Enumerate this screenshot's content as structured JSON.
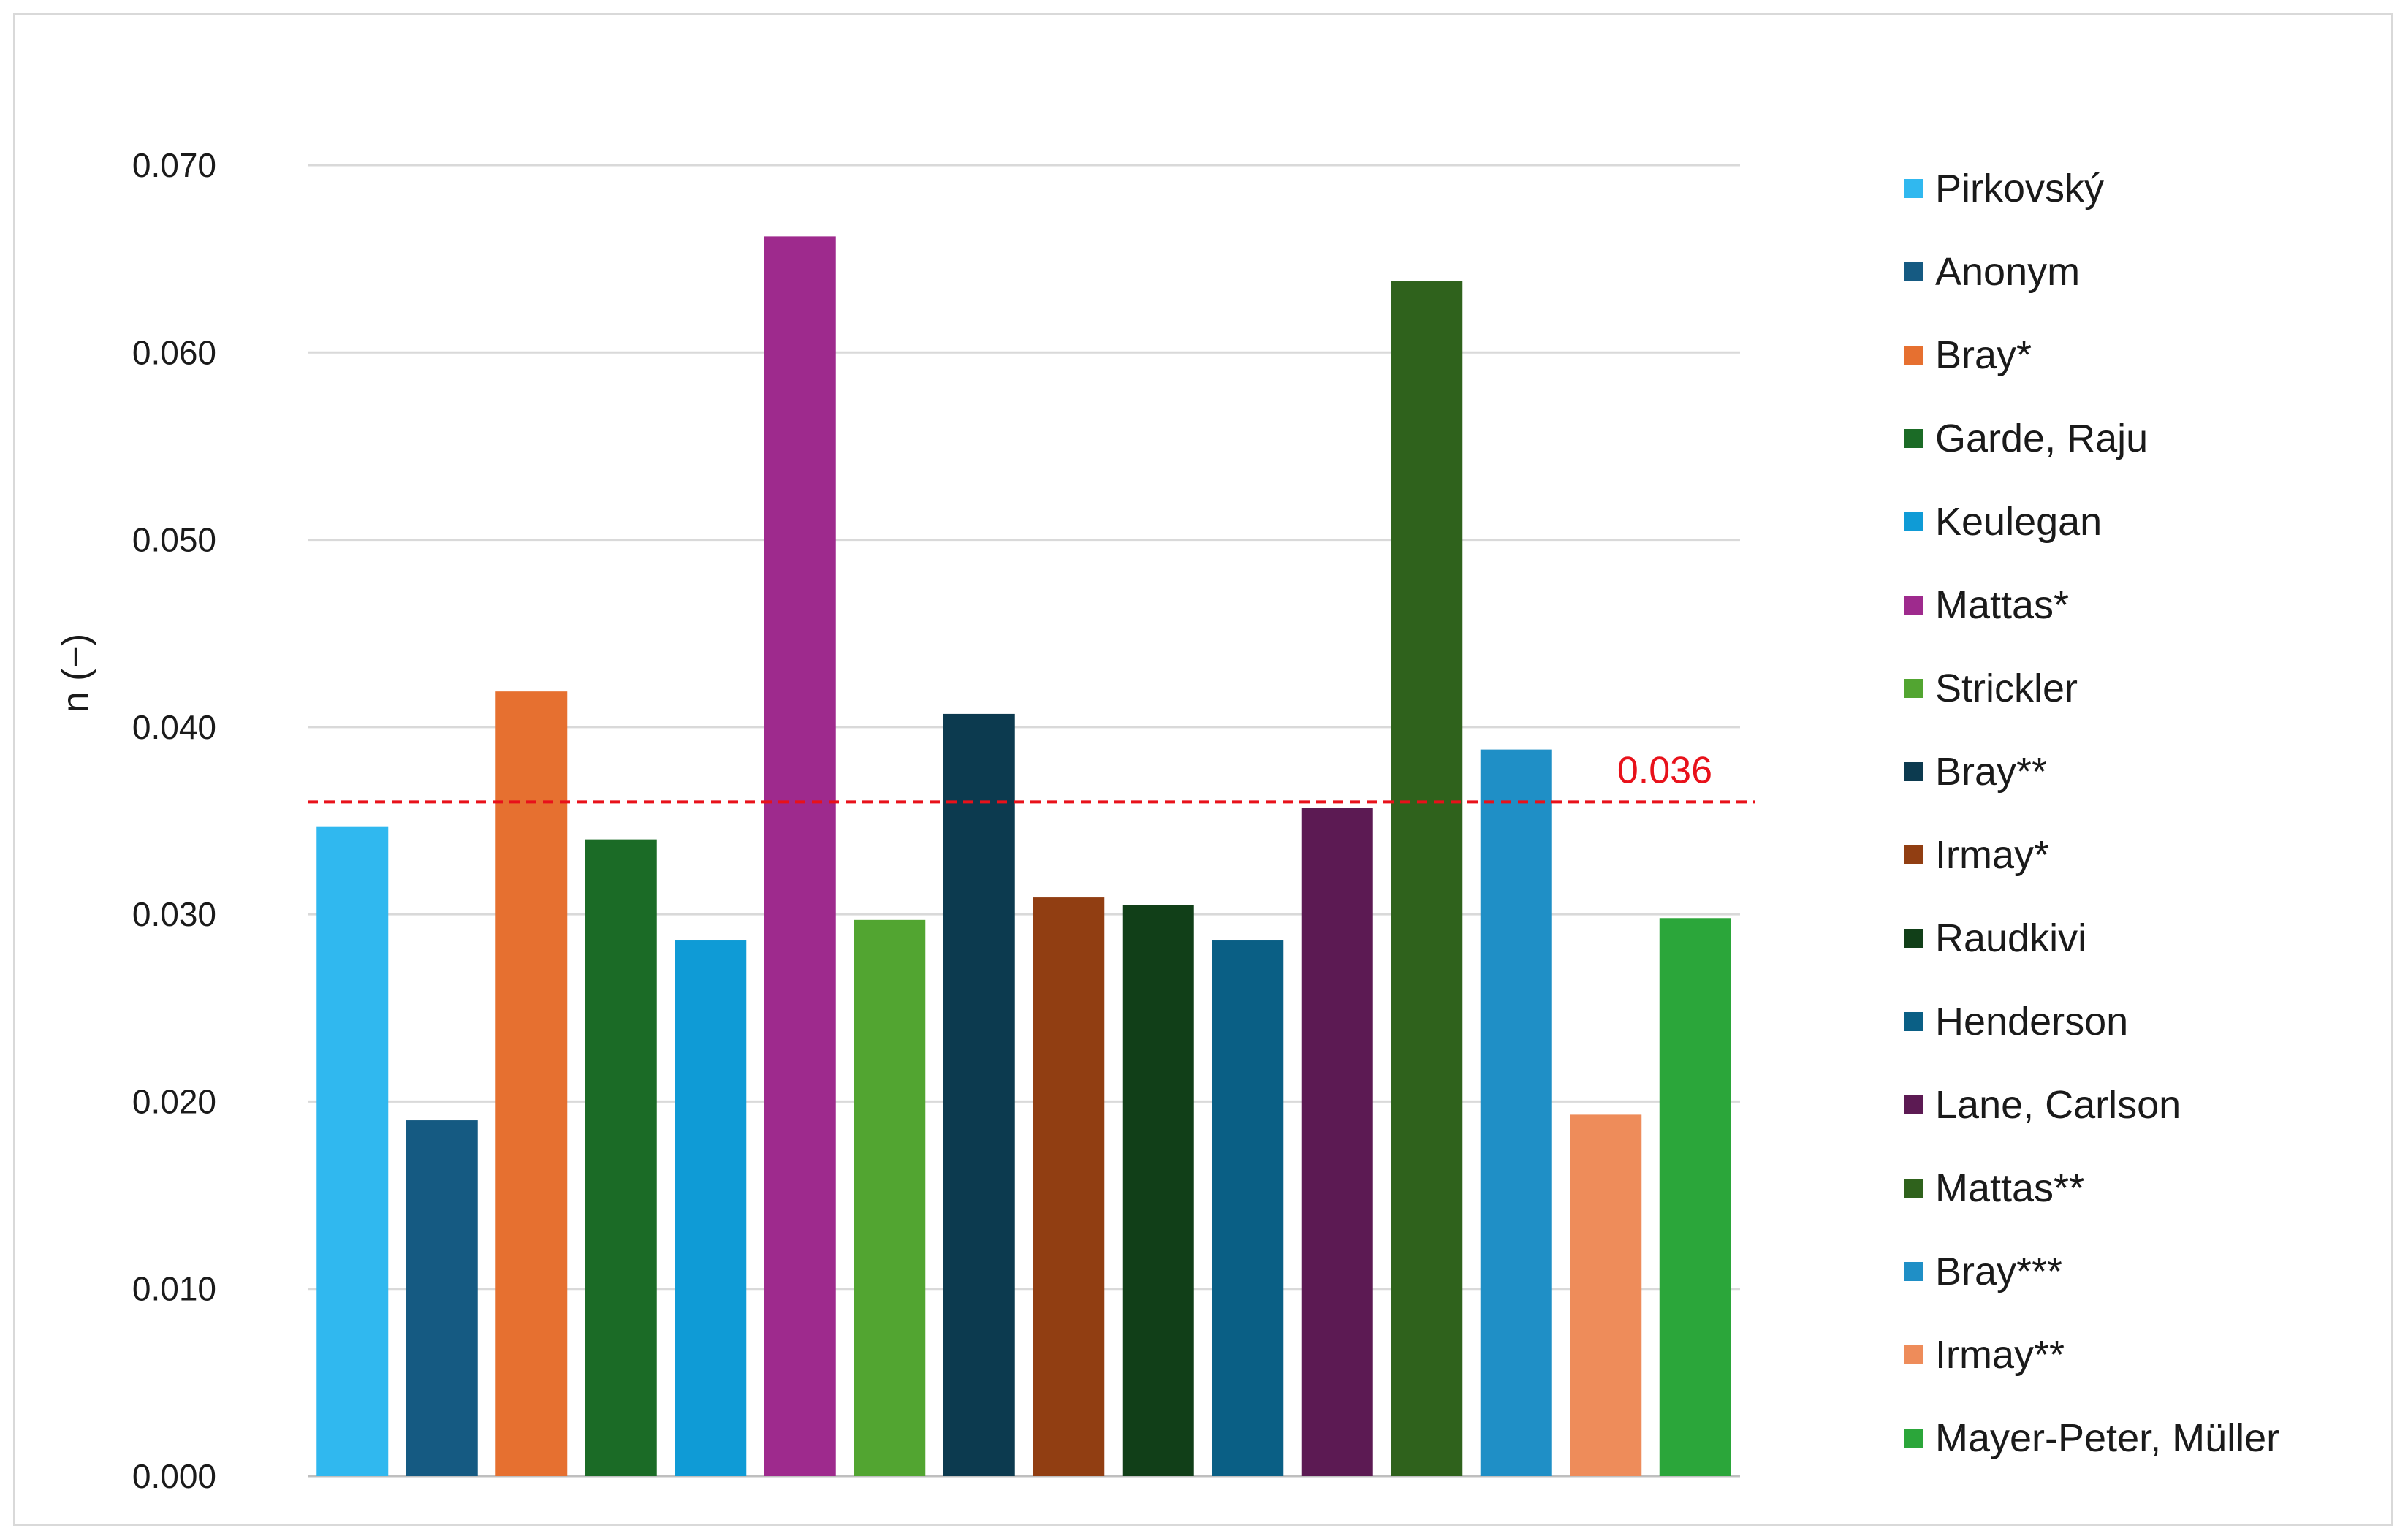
{
  "chart_data": {
    "type": "bar",
    "title": "",
    "xlabel": "",
    "ylabel": "n (−)",
    "ylim": [
      0,
      0.07
    ],
    "yticks": [
      "0.000",
      "0.010",
      "0.020",
      "0.030",
      "0.040",
      "0.050",
      "0.060",
      "0.070"
    ],
    "grid": "horizontal",
    "legend_position": "right",
    "categories": [
      "Pirkovský",
      "Anonym",
      "Bray*",
      "Garde, Raju",
      "Keulegan",
      "Mattas*",
      "Strickler",
      "Bray**",
      "Irmay*",
      "Raudkivi",
      "Henderson",
      "Lane, Carlson",
      "Mattas**",
      "Bray***",
      "Irmay**",
      "Mayer-Peter, Müller"
    ],
    "values": [
      0.0347,
      0.019,
      0.0419,
      0.034,
      0.0286,
      0.0662,
      0.0297,
      0.0407,
      0.0309,
      0.0305,
      0.0286,
      0.0357,
      0.0638,
      0.0388,
      0.0193,
      0.0298
    ],
    "colors": [
      "#30b8ef",
      "#155a82",
      "#e67030",
      "#1b6b26",
      "#0f9bd6",
      "#9e2a8d",
      "#52a531",
      "#0c3a4f",
      "#913e12",
      "#113f18",
      "#0a5f85",
      "#5c1a53",
      "#2f621c",
      "#1f8fc6",
      "#ee8c5a",
      "#2ba63a"
    ],
    "reference_line": {
      "value": 0.036,
      "label": "0.036",
      "color": "#e8111a",
      "style": "dashed"
    }
  }
}
